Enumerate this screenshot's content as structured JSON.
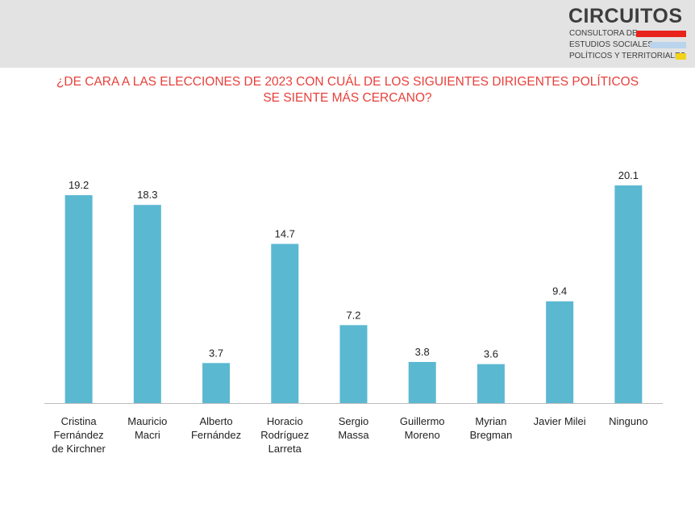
{
  "logo": {
    "name": "CIRCUITOS",
    "lines": [
      "CONSULTORA DE",
      "ESTUDIOS SOCIALES,",
      "POLÍTICOS Y TERRITORIALES"
    ],
    "colors": [
      "#e8231c",
      "#b9d4ec",
      "#f2d21b"
    ]
  },
  "question": {
    "line1": "¿DE CARA A LAS ELECCIONES DE 2023 CON CUÁL DE LOS SIGUIENTES DIRIGENTES POLÍTICOS",
    "line2": "SE SIENTE MÁS CERCANO?"
  },
  "colors": {
    "bar": "#5bb8d1",
    "title": "#e8403b",
    "axis": "#bdbdbd"
  },
  "chart_data": {
    "type": "bar",
    "categories": [
      [
        "Cristina",
        "Fernández",
        "de Kirchner"
      ],
      [
        "Mauricio",
        "Macri"
      ],
      [
        "Alberto",
        "Fernández"
      ],
      [
        "Horacio",
        "Rodríguez",
        "Larreta"
      ],
      [
        "Sergio",
        "Massa"
      ],
      [
        "Guillermo",
        "Moreno"
      ],
      [
        "Myrian",
        "Bregman"
      ],
      [
        "Javier Milei"
      ],
      [
        "Ninguno"
      ]
    ],
    "values": [
      19.2,
      18.3,
      3.7,
      14.7,
      7.2,
      3.8,
      3.6,
      9.4,
      20.1
    ],
    "value_labels": [
      "19.2",
      "18.3",
      "3.7",
      "14.7",
      "7.2",
      "3.8",
      "3.6",
      "9.4",
      "20.1"
    ],
    "ylim": [
      0,
      20.1
    ],
    "grid": false,
    "legend": "none"
  }
}
